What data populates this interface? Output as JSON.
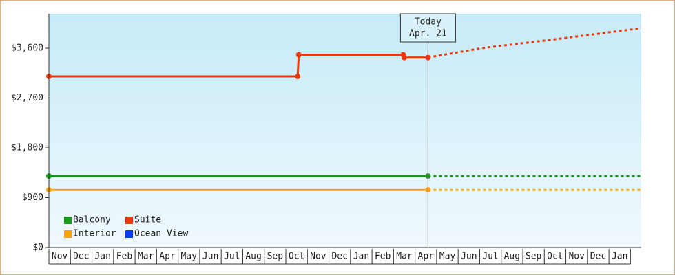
{
  "chart_data": {
    "type": "line",
    "xlim": [
      0,
      27.5
    ],
    "xticks": [
      {
        "value": 0.5,
        "label": "Nov"
      },
      {
        "value": 1.5,
        "label": "Dec"
      },
      {
        "value": 2.5,
        "label": "Jan"
      },
      {
        "value": 3.5,
        "label": "Feb"
      },
      {
        "value": 4.5,
        "label": "Mar"
      },
      {
        "value": 5.5,
        "label": "Apr"
      },
      {
        "value": 6.5,
        "label": "May"
      },
      {
        "value": 7.5,
        "label": "Jun"
      },
      {
        "value": 8.5,
        "label": "Jul"
      },
      {
        "value": 9.5,
        "label": "Aug"
      },
      {
        "value": 10.5,
        "label": "Sep"
      },
      {
        "value": 11.5,
        "label": "Oct"
      },
      {
        "value": 12.5,
        "label": "Nov"
      },
      {
        "value": 13.5,
        "label": "Dec"
      },
      {
        "value": 14.5,
        "label": "Jan"
      },
      {
        "value": 15.5,
        "label": "Feb"
      },
      {
        "value": 16.5,
        "label": "Mar"
      },
      {
        "value": 17.5,
        "label": "Apr"
      },
      {
        "value": 18.5,
        "label": "May"
      },
      {
        "value": 19.5,
        "label": "Jun"
      },
      {
        "value": 20.5,
        "label": "Jul"
      },
      {
        "value": 21.5,
        "label": "Aug"
      },
      {
        "value": 22.5,
        "label": "Sep"
      },
      {
        "value": 23.5,
        "label": "Oct"
      },
      {
        "value": 24.5,
        "label": "Nov"
      },
      {
        "value": 25.5,
        "label": "Dec"
      },
      {
        "value": 26.5,
        "label": "Jan"
      }
    ],
    "ylim": [
      0,
      4220
    ],
    "yticks": [
      {
        "value": 0,
        "label": "$0"
      },
      {
        "value": 900,
        "label": "$900"
      },
      {
        "value": 1800,
        "label": "$1,800"
      },
      {
        "value": 2700,
        "label": "$2,700"
      },
      {
        "value": 3600,
        "label": "$3,600"
      }
    ],
    "today": {
      "x": 17.6,
      "label": [
        "Today",
        "Apr. 21"
      ]
    },
    "series": [
      {
        "name": "Balcony",
        "color": "#15991a",
        "x": [
          0,
          17.6,
          27.5
        ],
        "values": [
          1290,
          1290,
          1290
        ]
      },
      {
        "name": "Suite",
        "color": "#ee3a0a",
        "x": [
          0,
          11.55,
          11.6,
          16.45,
          16.5,
          17.6,
          20.1,
          23.3,
          27.5
        ],
        "values": [
          3090,
          3090,
          3480,
          3480,
          3430,
          3430,
          3600,
          3750,
          3960
        ]
      },
      {
        "name": "Interior",
        "color": "#f5a40a",
        "x": [
          0,
          17.6,
          27.5
        ],
        "values": [
          1040,
          1040,
          1040
        ]
      },
      {
        "name": "Ocean View",
        "color": "#0a3cf0",
        "x": [],
        "values": []
      }
    ]
  }
}
